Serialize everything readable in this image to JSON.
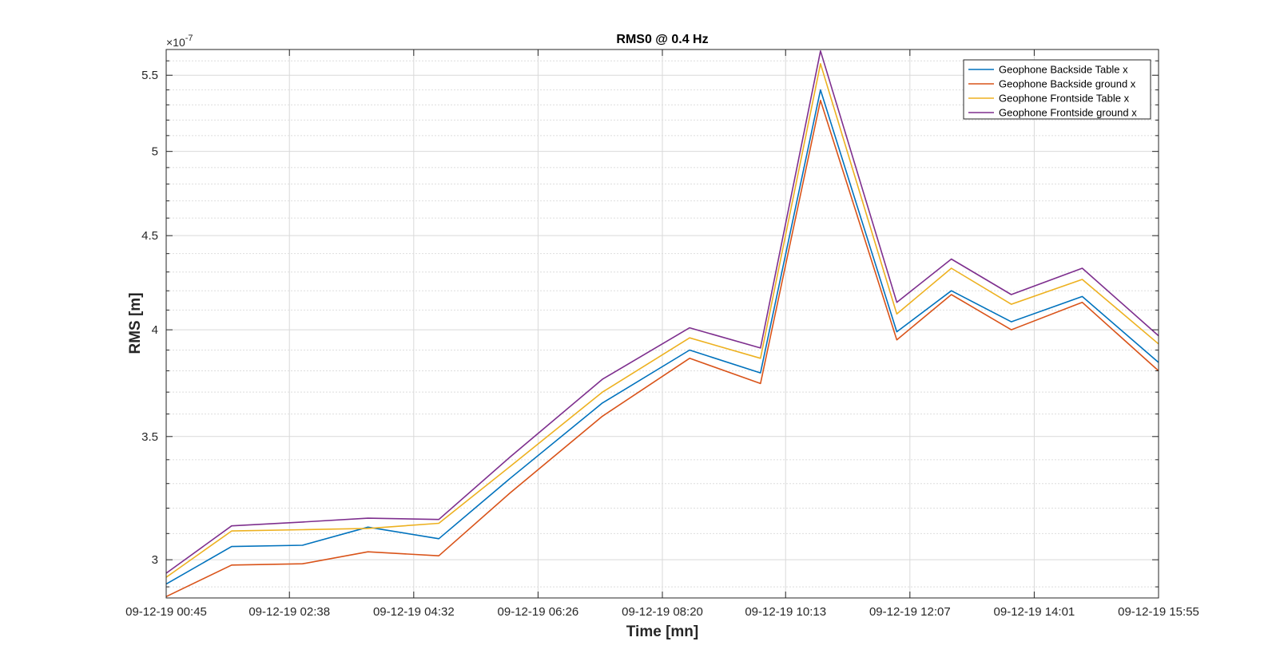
{
  "chart_data": {
    "type": "line",
    "title": "RMS0 @ 0.4 Hz",
    "xlabel": "Time [mn]",
    "ylabel": "RMS [m]",
    "y_scale": "log",
    "y_exponent_label": "×10",
    "y_exponent": "-7",
    "ylim": [
      2.86,
      5.68
    ],
    "y_ticks": [
      3,
      3.5,
      4,
      4.5,
      5,
      5.5
    ],
    "y_tick_labels": [
      "3",
      "3.5",
      "4",
      "4.5",
      "5",
      "5.5"
    ],
    "x_tick_labels": [
      "09-12-19 00:45",
      "09-12-19 02:38",
      "09-12-19 04:32",
      "09-12-19 06:26",
      "09-12-19 08:20",
      "09-12-19 10:13",
      "09-12-19 12:07",
      "09-12-19 14:01",
      "09-12-19 15:55"
    ],
    "x": [
      "09-12-19 00:45",
      "09-12-19 01:45",
      "09-12-19 02:50",
      "09-12-19 03:50",
      "09-12-19 04:55",
      "09-12-19 06:00",
      "09-12-19 07:25",
      "09-12-19 08:45",
      "09-12-19 09:50",
      "09-12-19 10:45",
      "09-12-19 11:55",
      "09-12-19 12:45",
      "09-12-19 13:40",
      "09-12-19 14:45",
      "09-12-19 15:55"
    ],
    "series": [
      {
        "name": "Geophone Backside Table x",
        "color": "#0072BD",
        "values": [
          2.91,
          3.05,
          3.055,
          3.125,
          3.08,
          3.32,
          3.65,
          3.9,
          3.79,
          5.4,
          3.99,
          4.2,
          4.04,
          4.17,
          3.84
        ]
      },
      {
        "name": "Geophone Backside ground x",
        "color": "#D95319",
        "values": [
          2.865,
          2.98,
          2.985,
          3.03,
          3.015,
          3.26,
          3.59,
          3.86,
          3.74,
          5.33,
          3.95,
          4.18,
          4.0,
          4.14,
          3.8
        ]
      },
      {
        "name": "Geophone Frontside Table x",
        "color": "#EDB120",
        "values": [
          2.935,
          3.11,
          3.115,
          3.12,
          3.14,
          3.37,
          3.7,
          3.96,
          3.86,
          5.58,
          4.08,
          4.32,
          4.13,
          4.26,
          3.93
        ]
      },
      {
        "name": "Geophone Frontside ground x",
        "color": "#7E2F8E",
        "values": [
          2.95,
          3.13,
          3.145,
          3.16,
          3.155,
          3.41,
          3.76,
          4.01,
          3.91,
          5.67,
          4.14,
          4.37,
          4.18,
          4.32,
          3.97
        ]
      }
    ],
    "grid": true,
    "minor_grid": true,
    "legend_position": "top-right"
  }
}
